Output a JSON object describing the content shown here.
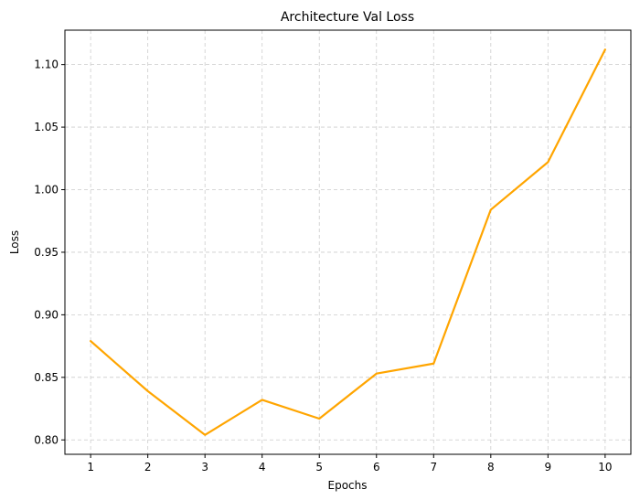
{
  "chart_data": {
    "type": "line",
    "title": "Architecture Val Loss",
    "xlabel": "Epochs",
    "ylabel": "Loss",
    "x": [
      1,
      2,
      3,
      4,
      5,
      6,
      7,
      8,
      9,
      10
    ],
    "series": [
      {
        "values": [
          0.879,
          0.839,
          0.804,
          0.832,
          0.817,
          0.853,
          0.861,
          0.984,
          1.022,
          1.112
        ],
        "color": "#FFA500"
      }
    ],
    "xlim": [
      0.55,
      10.45
    ],
    "ylim": [
      0.7885,
      1.1275
    ],
    "xticks": [
      "1",
      "2",
      "3",
      "4",
      "5",
      "6",
      "7",
      "8",
      "9",
      "10"
    ],
    "yticks": [
      "0.80",
      "0.85",
      "0.90",
      "0.95",
      "1.00",
      "1.05",
      "1.10"
    ],
    "grid": true,
    "grid_style": "dashed"
  }
}
